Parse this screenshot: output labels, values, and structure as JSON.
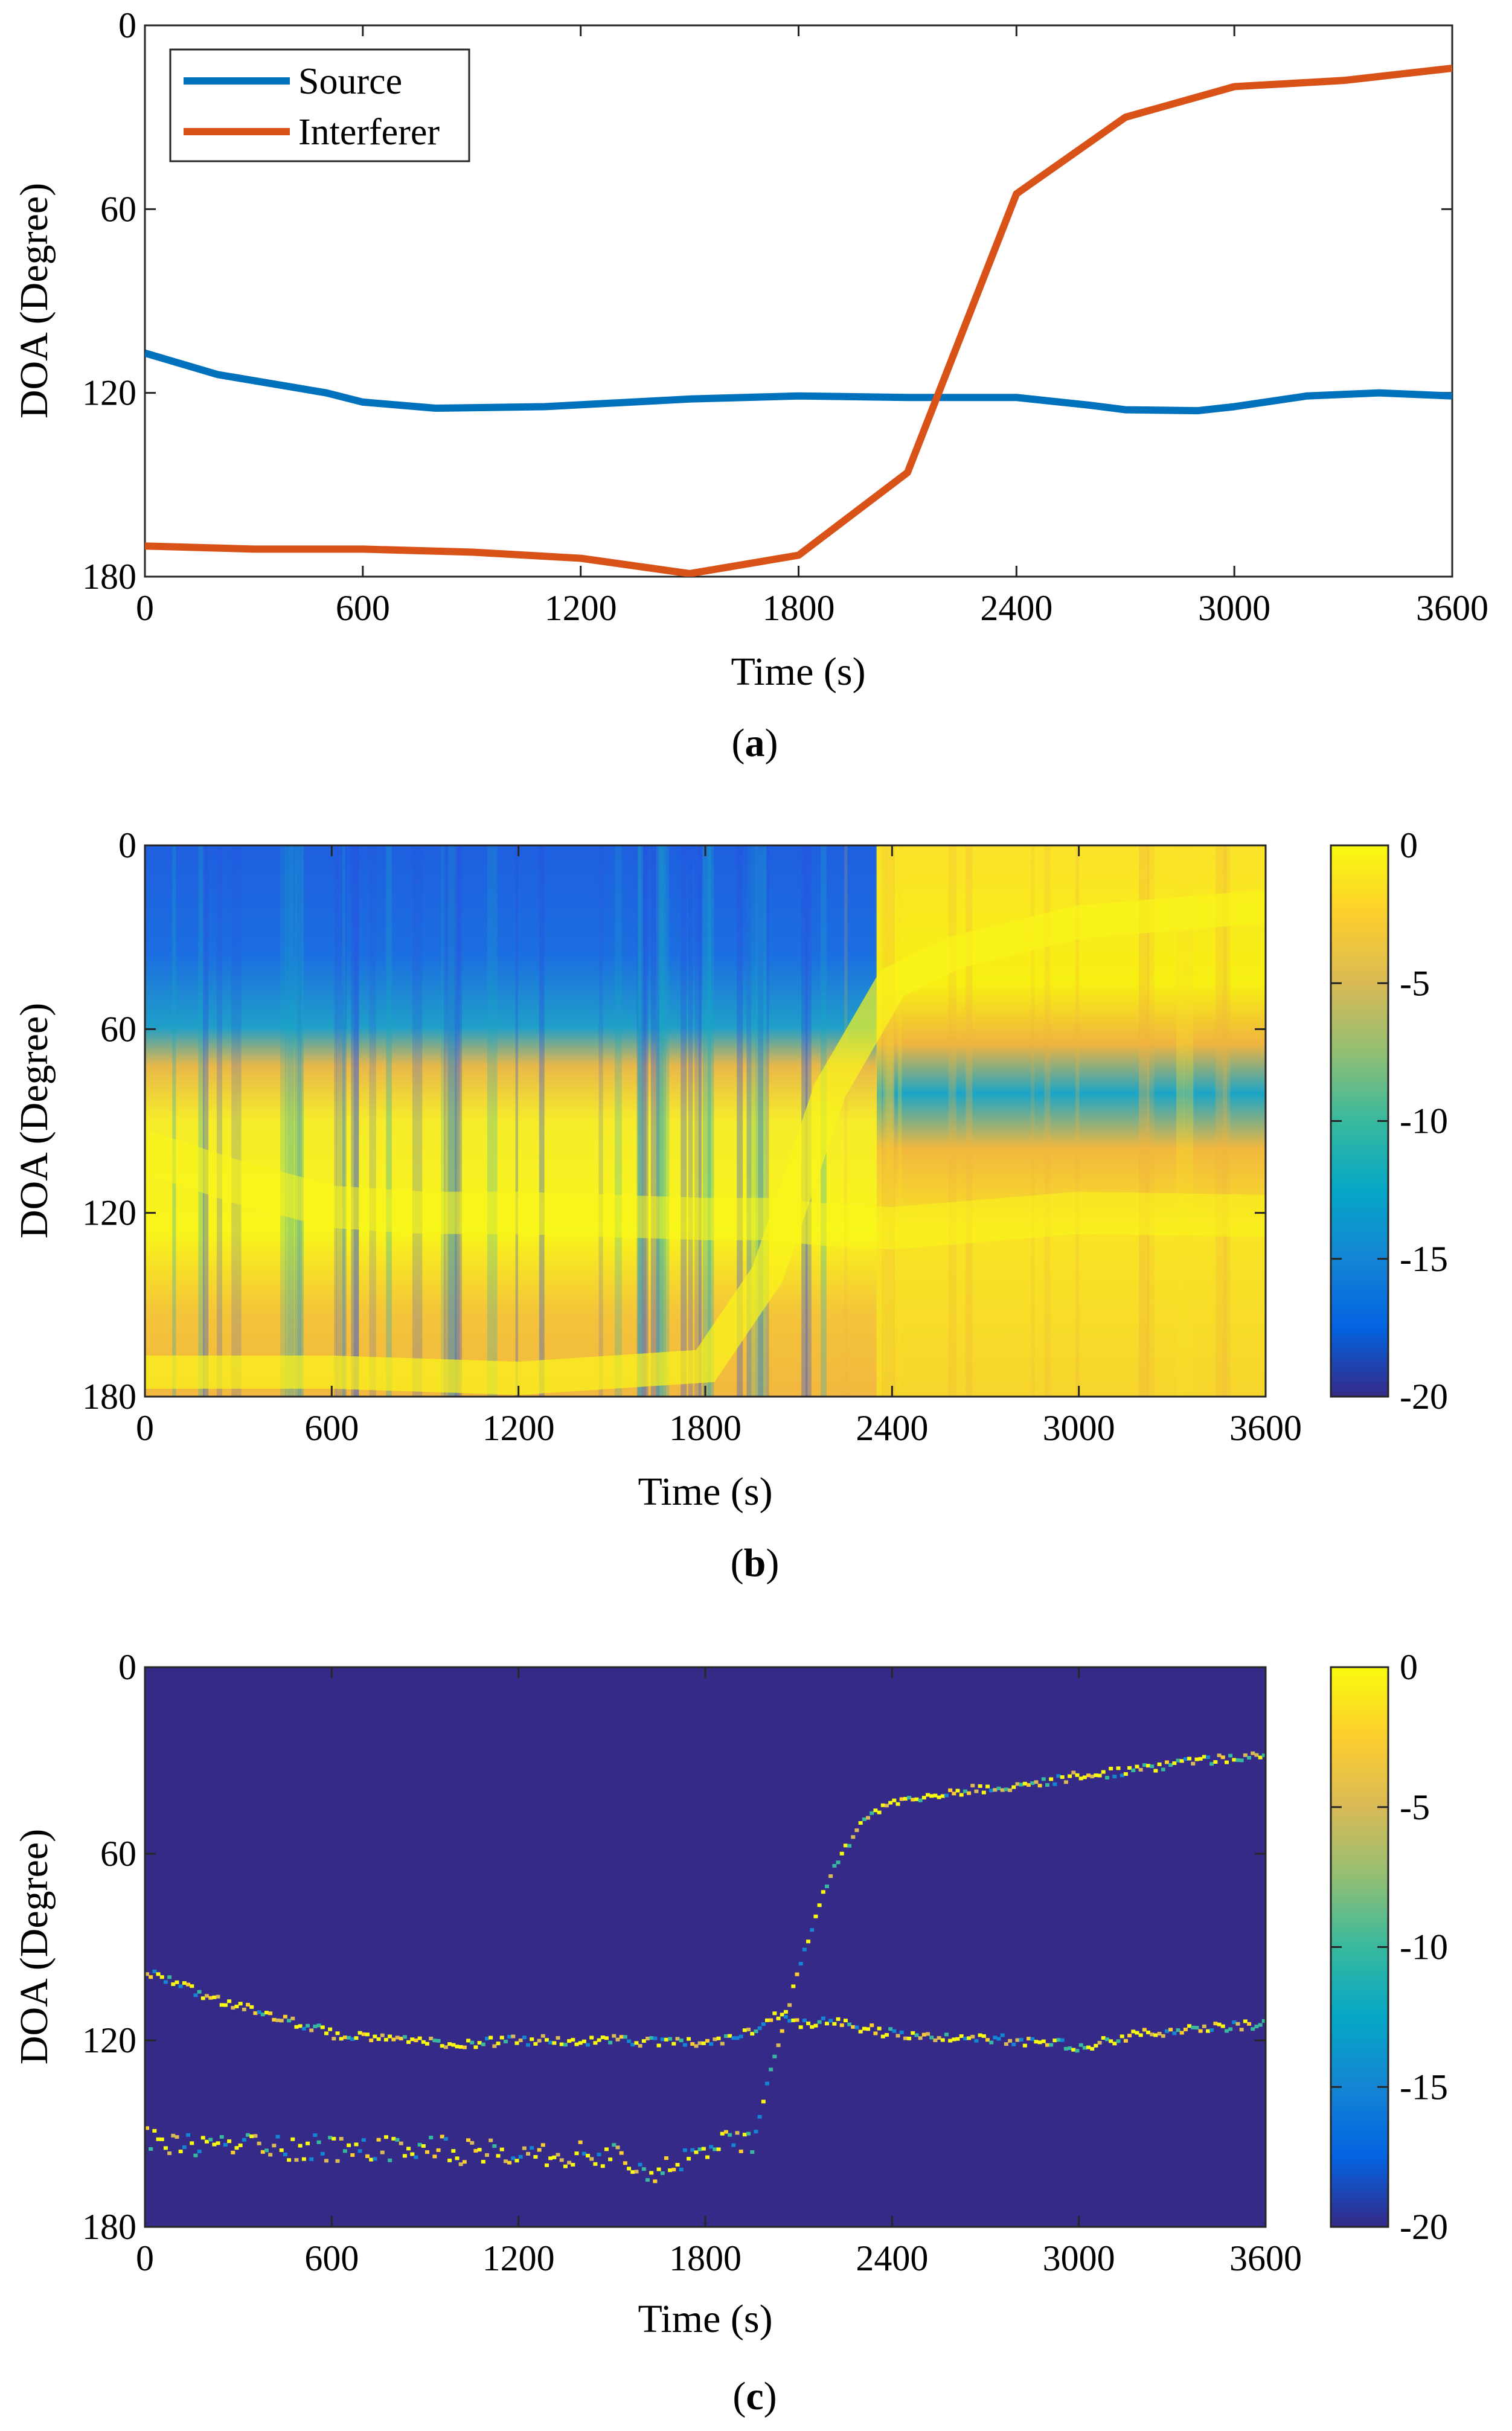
{
  "colors": {
    "source": "#0072BD",
    "interferer": "#D95319",
    "axis": "#000000"
  },
  "chart_data": [
    {
      "type": "line",
      "panel": "a",
      "caption_letter": "a",
      "xlabel": "Time (s)",
      "ylabel": "DOA (Degree)",
      "xlim": [
        0,
        3600
      ],
      "ylim": [
        0,
        180
      ],
      "y_reversed": true,
      "xticks": [
        0,
        600,
        1200,
        1800,
        2400,
        3000,
        3600
      ],
      "yticks": [
        0,
        60,
        120,
        180
      ],
      "xtick_labels": [
        "0",
        "600",
        "1200",
        "1800",
        "2400",
        "3000",
        "3600"
      ],
      "ytick_labels": [
        "0",
        "60",
        "120",
        "180"
      ],
      "legend_position": "top-left",
      "series": [
        {
          "name": "Source",
          "x": [
            0,
            200,
            500,
            600,
            800,
            1100,
            1500,
            1800,
            2100,
            2400,
            2600,
            2700,
            2900,
            3000,
            3200,
            3400,
            3600
          ],
          "y": [
            107,
            114,
            120,
            123,
            125,
            124.5,
            122,
            121,
            121.5,
            121.5,
            124,
            125.5,
            125.8,
            124.5,
            121,
            120,
            121
          ]
        },
        {
          "name": "Interferer",
          "x": [
            0,
            300,
            600,
            900,
            1200,
            1500,
            1800,
            2100,
            2400,
            2700,
            3000,
            3300,
            3600
          ],
          "y": [
            170,
            171,
            171,
            172,
            174,
            179,
            173,
            146,
            55,
            30,
            20,
            18,
            14
          ]
        }
      ]
    },
    {
      "type": "heatmap",
      "panel": "b",
      "caption_letter": "b",
      "xlabel": "Time (s)",
      "ylabel": "DOA (Degree)",
      "xlim": [
        0,
        3600
      ],
      "ylim": [
        0,
        180
      ],
      "y_reversed": true,
      "xticks": [
        0,
        600,
        1200,
        1800,
        2400,
        3000,
        3600
      ],
      "yticks": [
        0,
        60,
        120,
        180
      ],
      "xtick_labels": [
        "0",
        "600",
        "1200",
        "1800",
        "2400",
        "3000",
        "3600"
      ],
      "ytick_labels": [
        "0",
        "60",
        "120",
        "180"
      ],
      "colorbar_range": [
        -20,
        0
      ],
      "colorbar_ticks": [
        0,
        -5,
        -10,
        -15,
        -20
      ],
      "colorbar_tick_labels": [
        "0",
        "-5",
        "-10",
        "-15",
        "-20"
      ],
      "source_track": {
        "x": [
          0,
          300,
          600,
          900,
          1200,
          1500,
          1800,
          2000,
          2200,
          2400,
          3000,
          3600
        ],
        "y": [
          100,
          110,
          118,
          120,
          120,
          121,
          122,
          122,
          124,
          125,
          120,
          121
        ]
      },
      "interferer_track": {
        "x": [
          0,
          600,
          1200,
          1800,
          2000,
          2200,
          2400,
          2600,
          3000,
          3600
        ],
        "y": [
          172,
          172,
          174,
          170,
          140,
          80,
          45,
          35,
          25,
          20
        ]
      }
    },
    {
      "type": "heatmap",
      "panel": "c",
      "caption_letter": "c",
      "xlabel": "Time (s)",
      "ylabel": "DOA (Degree)",
      "xlim": [
        0,
        3600
      ],
      "ylim": [
        0,
        180
      ],
      "y_reversed": true,
      "xticks": [
        0,
        600,
        1200,
        1800,
        2400,
        3000,
        3600
      ],
      "yticks": [
        0,
        60,
        120,
        180
      ],
      "xtick_labels": [
        "0",
        "600",
        "1200",
        "1800",
        "2400",
        "3000",
        "3600"
      ],
      "ytick_labels": [
        "0",
        "60",
        "120",
        "180"
      ],
      "colorbar_range": [
        -20,
        0
      ],
      "colorbar_ticks": [
        0,
        -5,
        -10,
        -15,
        -20
      ],
      "colorbar_tick_labels": [
        "0",
        "-5",
        "-10",
        "-15",
        "-20"
      ],
      "source_track": {
        "x": [
          0,
          200,
          400,
          600,
          800,
          1000,
          1200,
          1500,
          1800,
          1950,
          2000,
          2100,
          2200,
          2400,
          2600,
          2800,
          3000,
          3200,
          3400,
          3600
        ],
        "y": [
          98,
          106,
          112,
          118,
          120,
          121,
          120,
          120,
          121,
          117,
          112,
          115,
          114,
          118,
          119,
          120,
          122,
          118,
          116,
          115
        ]
      },
      "interferer_track": {
        "x": [
          0,
          300,
          600,
          900,
          1200,
          1500,
          1650,
          1800,
          1950,
          2000,
          2100,
          2200,
          2300,
          2400,
          2600,
          2800,
          3000,
          3200,
          3400,
          3600
        ],
        "y": [
          152,
          154,
          155,
          155,
          156,
          158,
          162,
          155,
          152,
          130,
          95,
          65,
          50,
          43,
          40,
          38,
          35,
          33,
          30,
          28
        ]
      }
    }
  ]
}
